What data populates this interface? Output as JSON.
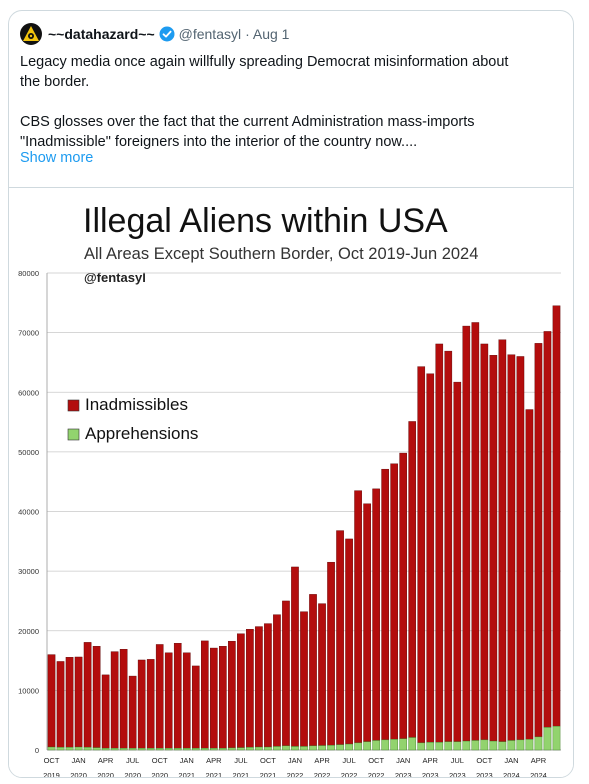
{
  "tweet": {
    "display_name": "~~datahazard~~",
    "handle": "@fentasyl",
    "date": "· Aug 1",
    "text_line1": "Legacy media once again willfully spreading Democrat misinformation about",
    "text_line2": "the border.",
    "text_line3": "CBS glosses over the fact that the current Administration mass-imports",
    "text_line4": "\"Inadmissible\" foreigners into the interior of the country now....",
    "show_more": "Show more",
    "avatar_icon": "biohazard-icon",
    "verified_icon": "verified-badge-icon",
    "accent_color": "#1d9bf0"
  },
  "chart_data": {
    "type": "bar",
    "stacked": true,
    "title": "Illegal Aliens within USA",
    "subtitle": "All Areas Except Southern Border, Oct 2019-Jun 2024",
    "credit": "@fentasyl",
    "ylim": [
      0,
      80000
    ],
    "yticks": [
      "0",
      "10000",
      "20000",
      "30000",
      "40000",
      "50000",
      "60000",
      "70000",
      "80000"
    ],
    "grid": true,
    "legend_placement": "left",
    "xtick_labels": [
      {
        "i": 0,
        "m": "OCT",
        "y": "2019"
      },
      {
        "i": 3,
        "m": "JAN",
        "y": "2020"
      },
      {
        "i": 6,
        "m": "APR",
        "y": "2020"
      },
      {
        "i": 9,
        "m": "JUL",
        "y": "2020"
      },
      {
        "i": 12,
        "m": "OCT",
        "y": "2020"
      },
      {
        "i": 15,
        "m": "JAN",
        "y": "2021"
      },
      {
        "i": 18,
        "m": "APR",
        "y": "2021"
      },
      {
        "i": 21,
        "m": "JUL",
        "y": "2021"
      },
      {
        "i": 24,
        "m": "OCT",
        "y": "2021"
      },
      {
        "i": 27,
        "m": "JAN",
        "y": "2022"
      },
      {
        "i": 30,
        "m": "APR",
        "y": "2022"
      },
      {
        "i": 33,
        "m": "JUL",
        "y": "2022"
      },
      {
        "i": 36,
        "m": "OCT",
        "y": "2022"
      },
      {
        "i": 39,
        "m": "JAN",
        "y": "2023"
      },
      {
        "i": 42,
        "m": "APR",
        "y": "2023"
      },
      {
        "i": 45,
        "m": "JUL",
        "y": "2023"
      },
      {
        "i": 48,
        "m": "OCT",
        "y": "2023"
      },
      {
        "i": 51,
        "m": "JAN",
        "y": "2024"
      },
      {
        "i": 54,
        "m": "APR",
        "y": "2024"
      }
    ],
    "categories": [
      "Oct 2019",
      "Nov 2019",
      "Dec 2019",
      "Jan 2020",
      "Feb 2020",
      "Mar 2020",
      "Apr 2020",
      "May 2020",
      "Jun 2020",
      "Jul 2020",
      "Aug 2020",
      "Sep 2020",
      "Oct 2020",
      "Nov 2020",
      "Dec 2020",
      "Jan 2021",
      "Feb 2021",
      "Mar 2021",
      "Apr 2021",
      "May 2021",
      "Jun 2021",
      "Jul 2021",
      "Aug 2021",
      "Sep 2021",
      "Oct 2021",
      "Nov 2021",
      "Dec 2021",
      "Jan 2022",
      "Feb 2022",
      "Mar 2022",
      "Apr 2022",
      "May 2022",
      "Jun 2022",
      "Jul 2022",
      "Aug 2022",
      "Sep 2022",
      "Oct 2022",
      "Nov 2022",
      "Dec 2022",
      "Jan 2023",
      "Feb 2023",
      "Mar 2023",
      "Apr 2023",
      "May 2023",
      "Jun 2023",
      "Jul 2023",
      "Aug 2023",
      "Sep 2023",
      "Oct 2023",
      "Nov 2023",
      "Dec 2023",
      "Jan 2024",
      "Feb 2024",
      "Mar 2024",
      "Apr 2024",
      "May 2024",
      "Jun 2024"
    ],
    "series": [
      {
        "name": "Apprehensions",
        "color": "#92d36e",
        "values": [
          500,
          450,
          450,
          500,
          450,
          400,
          300,
          300,
          300,
          300,
          300,
          300,
          300,
          300,
          300,
          300,
          300,
          300,
          300,
          300,
          350,
          400,
          450,
          500,
          500,
          600,
          700,
          600,
          600,
          700,
          750,
          800,
          900,
          1000,
          1200,
          1400,
          1600,
          1700,
          1800,
          1900,
          2100,
          1200,
          1300,
          1300,
          1400,
          1400,
          1500,
          1600,
          1700,
          1500,
          1400,
          1600,
          1700,
          1800,
          2200,
          3800,
          4000
        ]
      },
      {
        "name": "Inadmissibles",
        "color": "#b30d0d",
        "values": [
          15500,
          14400,
          15100,
          15100,
          17600,
          17000,
          12300,
          16200,
          16600,
          12100,
          14800,
          14900,
          17400,
          16000,
          17600,
          16000,
          13800,
          18000,
          16800,
          17100,
          17900,
          19100,
          19800,
          20200,
          20700,
          22100,
          24300,
          30100,
          22600,
          25400,
          23800,
          30700,
          35900,
          34400,
          42300,
          39900,
          42200,
          45400,
          46200,
          47900,
          53000,
          63100,
          61800,
          66800,
          65500,
          60300,
          69600,
          70100,
          66400,
          64700,
          67400,
          64700,
          64300,
          55300,
          66000,
          66400,
          70500
        ]
      }
    ]
  }
}
